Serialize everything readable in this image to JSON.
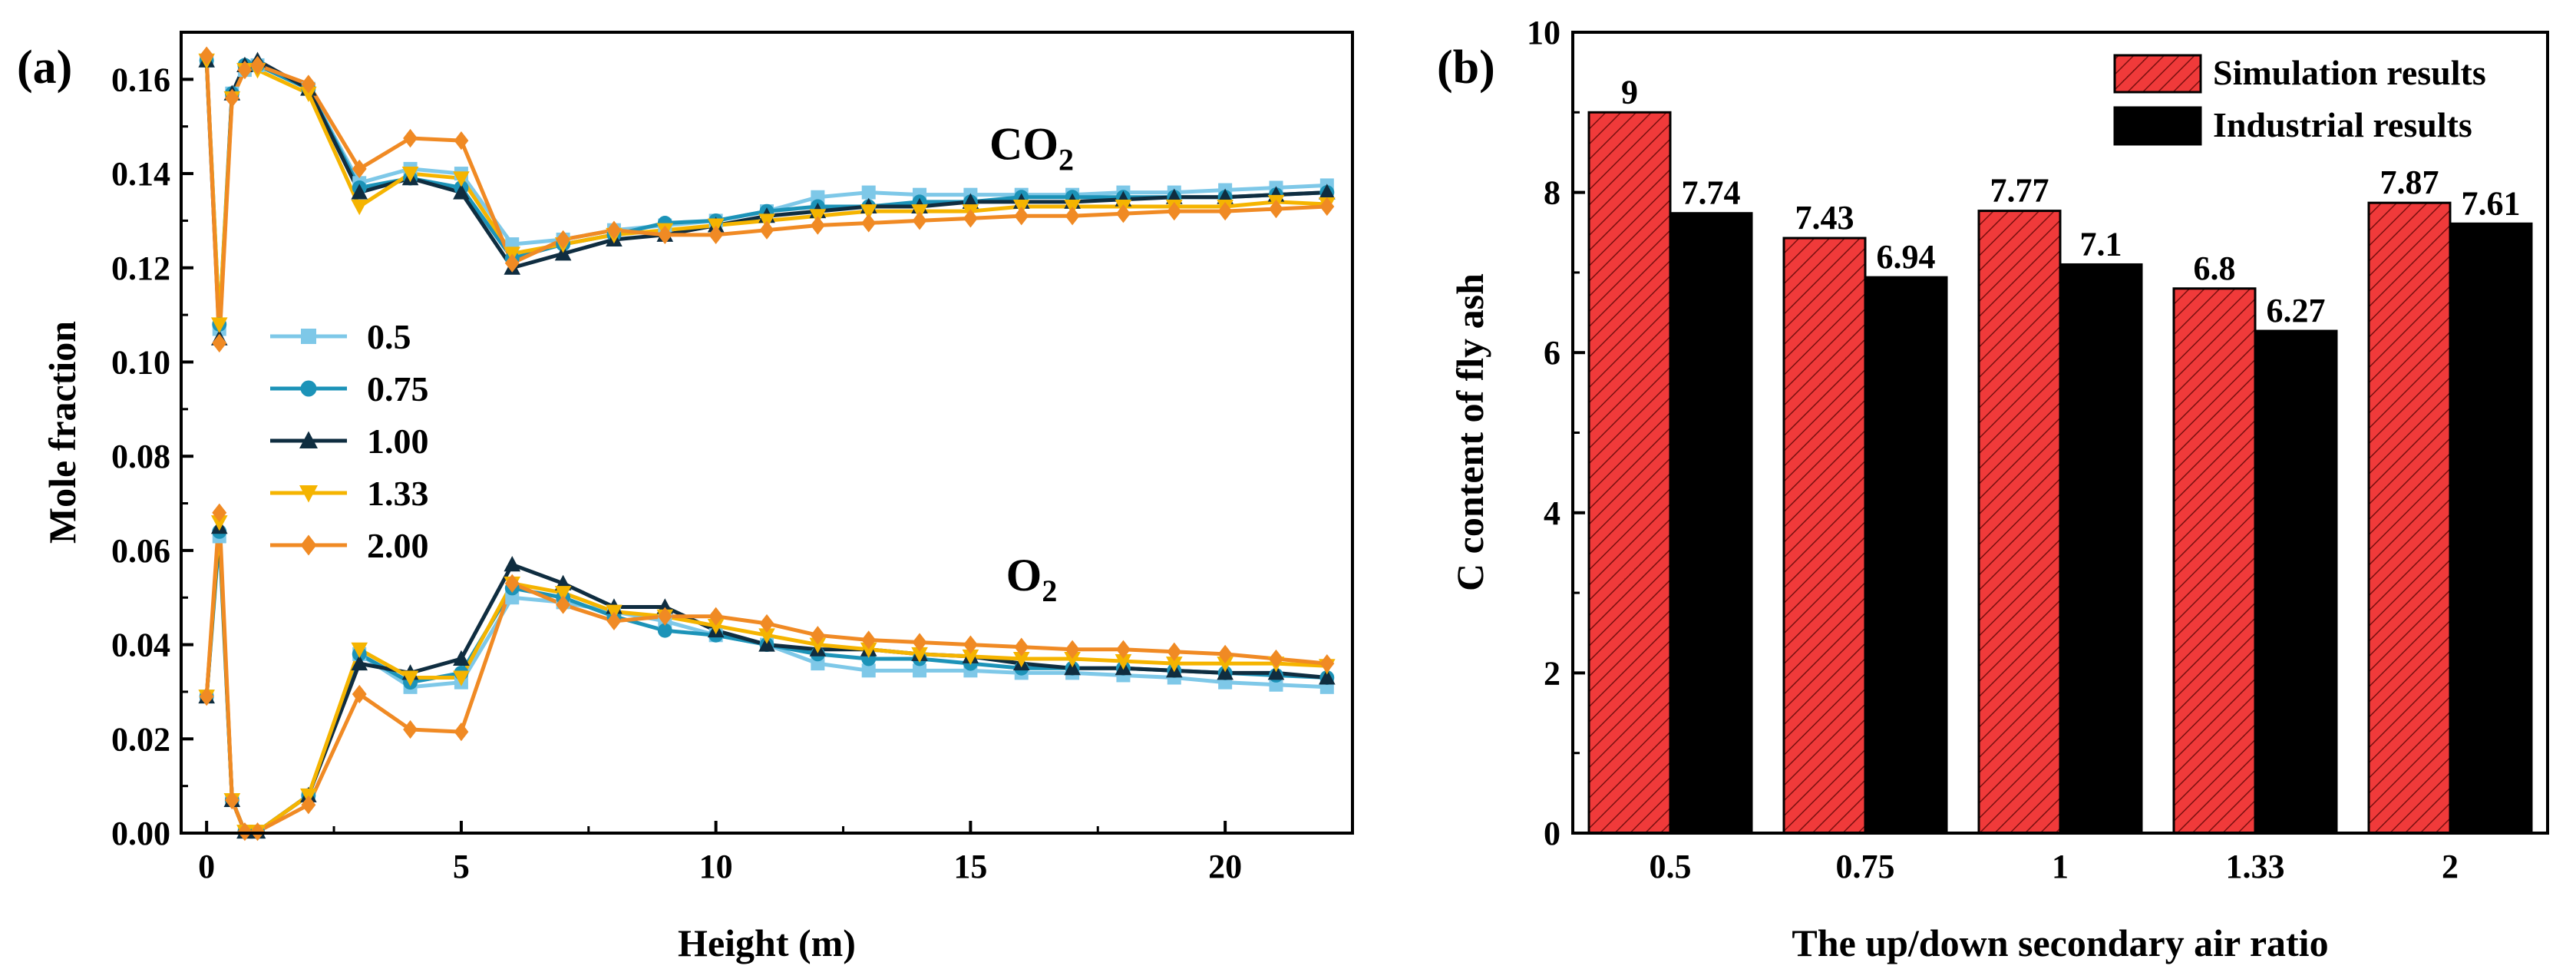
{
  "chart_data": [
    {
      "panel_label": "(a)",
      "type": "line",
      "title": "",
      "xlabel": "Height (m)",
      "ylabel": "Mole fraction",
      "xlim": [
        -0.5,
        22.5
      ],
      "ylim": [
        0.0,
        0.17
      ],
      "xticks": [
        0,
        5,
        10,
        15,
        20
      ],
      "xtick_labels": [
        "0",
        "5",
        "10",
        "15",
        "20"
      ],
      "yticks": [
        0.0,
        0.02,
        0.04,
        0.06,
        0.08,
        0.1,
        0.12,
        0.14,
        0.16
      ],
      "ytick_labels": [
        "0.00",
        "0.02",
        "0.04",
        "0.06",
        "0.08",
        "0.10",
        "0.12",
        "0.14",
        "0.16"
      ],
      "x": [
        0,
        0.25,
        0.5,
        0.75,
        1,
        2,
        3,
        4,
        5,
        6,
        7,
        8,
        9,
        10,
        11,
        12,
        13,
        14,
        15,
        16,
        17,
        18,
        19,
        20,
        21,
        22
      ],
      "annotations": [
        {
          "base": "CO",
          "sub": "2",
          "x": 16.2,
          "y": 0.143
        },
        {
          "base": "O",
          "sub": "2",
          "x": 16.2,
          "y": 0.0515
        }
      ],
      "legend": {
        "position": "center-left",
        "entries": [
          "0.5",
          "0.75",
          "1.00",
          "1.33",
          "2.00"
        ]
      },
      "series": [
        {
          "name": "0.5",
          "gas": "CO2",
          "color": "#7ec8e8",
          "marker": "square",
          "values": [
            0.164,
            0.107,
            0.157,
            0.162,
            0.163,
            0.158,
            0.138,
            0.141,
            0.14,
            0.125,
            0.126,
            0.128,
            0.129,
            0.13,
            0.132,
            0.135,
            0.136,
            0.1355,
            0.1355,
            0.1355,
            0.1355,
            0.136,
            0.136,
            0.1365,
            0.137,
            0.1375
          ]
        },
        {
          "name": "0.75",
          "gas": "CO2",
          "color": "#1c93b8",
          "marker": "circle",
          "values": [
            0.164,
            0.108,
            0.157,
            0.163,
            0.163,
            0.158,
            0.137,
            0.139,
            0.137,
            0.122,
            0.125,
            0.127,
            0.1295,
            0.13,
            0.132,
            0.133,
            0.133,
            0.134,
            0.134,
            0.135,
            0.135,
            0.135,
            0.135,
            0.135,
            0.1355,
            0.136
          ]
        },
        {
          "name": "1.00",
          "gas": "CO2",
          "color": "#0f2d40",
          "marker": "triangle-up",
          "values": [
            0.164,
            0.105,
            0.157,
            0.163,
            0.164,
            0.158,
            0.136,
            0.139,
            0.136,
            0.12,
            0.123,
            0.126,
            0.127,
            0.129,
            0.131,
            0.132,
            0.133,
            0.133,
            0.134,
            0.134,
            0.134,
            0.1345,
            0.135,
            0.135,
            0.1355,
            0.136
          ]
        },
        {
          "name": "1.33",
          "gas": "CO2",
          "color": "#f5b400",
          "marker": "triangle-down",
          "values": [
            0.164,
            0.108,
            0.156,
            0.162,
            0.162,
            0.157,
            0.133,
            0.14,
            0.139,
            0.123,
            0.125,
            0.127,
            0.128,
            0.129,
            0.13,
            0.131,
            0.132,
            0.132,
            0.132,
            0.133,
            0.133,
            0.133,
            0.133,
            0.133,
            0.134,
            0.1335
          ]
        },
        {
          "name": "2.00",
          "gas": "CO2",
          "color": "#f08a24",
          "marker": "diamond",
          "values": [
            0.165,
            0.104,
            0.156,
            0.162,
            0.163,
            0.159,
            0.141,
            0.1475,
            0.147,
            0.121,
            0.126,
            0.128,
            0.127,
            0.127,
            0.128,
            0.129,
            0.1295,
            0.13,
            0.1305,
            0.131,
            0.131,
            0.1315,
            0.132,
            0.132,
            0.1325,
            0.133
          ]
        },
        {
          "name": "0.5",
          "gas": "O2",
          "color": "#7ec8e8",
          "marker": "square",
          "values": [
            0.029,
            0.063,
            0.007,
            0.0003,
            0.0003,
            0.008,
            0.038,
            0.031,
            0.032,
            0.05,
            0.049,
            0.047,
            0.045,
            0.042,
            0.04,
            0.036,
            0.0345,
            0.0345,
            0.0345,
            0.034,
            0.034,
            0.0335,
            0.033,
            0.032,
            0.0315,
            0.031
          ]
        },
        {
          "name": "0.75",
          "gas": "O2",
          "color": "#1c93b8",
          "marker": "circle",
          "values": [
            0.029,
            0.064,
            0.007,
            0.0003,
            0.0003,
            0.008,
            0.038,
            0.032,
            0.034,
            0.052,
            0.05,
            0.046,
            0.043,
            0.042,
            0.04,
            0.038,
            0.037,
            0.037,
            0.036,
            0.035,
            0.035,
            0.035,
            0.0345,
            0.034,
            0.0335,
            0.033
          ]
        },
        {
          "name": "1.00",
          "gas": "O2",
          "color": "#0f2d40",
          "marker": "triangle-up",
          "values": [
            0.029,
            0.065,
            0.007,
            0.0003,
            0.0003,
            0.008,
            0.036,
            0.034,
            0.037,
            0.057,
            0.053,
            0.048,
            0.048,
            0.043,
            0.04,
            0.039,
            0.039,
            0.038,
            0.0375,
            0.036,
            0.035,
            0.035,
            0.0345,
            0.034,
            0.034,
            0.033
          ]
        },
        {
          "name": "1.33",
          "gas": "O2",
          "color": "#f5b400",
          "marker": "triangle-down",
          "values": [
            0.029,
            0.066,
            0.007,
            0.0003,
            0.0003,
            0.008,
            0.039,
            0.033,
            0.033,
            0.053,
            0.051,
            0.047,
            0.046,
            0.044,
            0.042,
            0.04,
            0.039,
            0.038,
            0.0375,
            0.037,
            0.037,
            0.0365,
            0.036,
            0.036,
            0.036,
            0.0355
          ]
        },
        {
          "name": "2.00",
          "gas": "O2",
          "color": "#f08a24",
          "marker": "diamond",
          "values": [
            0.029,
            0.068,
            0.007,
            0.0003,
            0.0003,
            0.006,
            0.0295,
            0.022,
            0.0215,
            0.053,
            0.0485,
            0.045,
            0.046,
            0.046,
            0.0445,
            0.042,
            0.041,
            0.0405,
            0.04,
            0.0395,
            0.039,
            0.039,
            0.0385,
            0.038,
            0.037,
            0.036
          ]
        }
      ]
    },
    {
      "panel_label": "(b)",
      "type": "bar",
      "title": "",
      "xlabel": "The up/down secondary air ratio",
      "ylabel": "C content of fly ash",
      "ylim": [
        0,
        10
      ],
      "yticks": [
        0,
        2,
        4,
        6,
        8,
        10
      ],
      "ytick_labels": [
        "0",
        "2",
        "4",
        "6",
        "8",
        "10"
      ],
      "categories": [
        "0.5",
        "0.75",
        "1",
        "1.33",
        "2"
      ],
      "legend": {
        "position": "top-right",
        "entries": [
          "Simulation results",
          "Industrial results"
        ]
      },
      "series": [
        {
          "name": "Simulation results",
          "color": "#f03a3a",
          "hatch": "diagonal",
          "values": [
            9,
            7.43,
            7.77,
            6.8,
            7.87
          ],
          "labels": [
            "9",
            "7.43",
            "7.77",
            "6.8",
            "7.87"
          ]
        },
        {
          "name": "Industrial results",
          "color": "#000000",
          "values": [
            7.74,
            6.94,
            7.1,
            6.27,
            7.61
          ],
          "labels": [
            "7.74",
            "6.94",
            "7.1",
            "6.27",
            "7.61"
          ]
        }
      ]
    }
  ]
}
